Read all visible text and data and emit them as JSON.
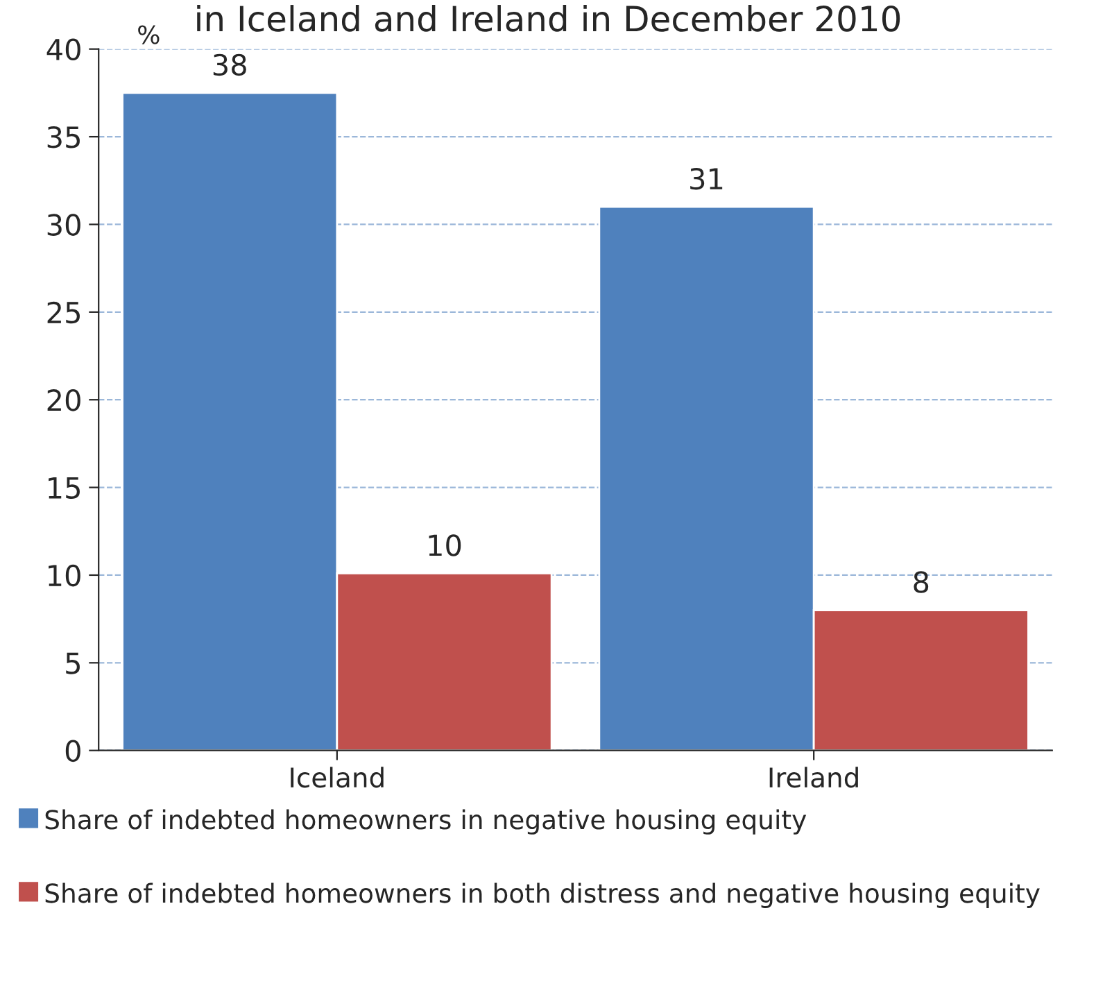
{
  "chart_data": {
    "type": "bar",
    "title": "in Iceland and Ireland in December 2010",
    "ylabel": "%",
    "categories": [
      "Iceland",
      "Ireland"
    ],
    "series": [
      {
        "name": "Share of indebted homeowners in negative housing equity",
        "color": "#4f81bd",
        "values": [
          37.5,
          31.0
        ],
        "value_labels": [
          "38",
          "31"
        ]
      },
      {
        "name": "Share of indebted homeowners in both distress and negative housing equity",
        "color": "#c0504d",
        "values": [
          10.1,
          8.0
        ],
        "value_labels": [
          "10",
          "8"
        ]
      }
    ],
    "ylim": [
      0,
      40
    ],
    "yticks": [
      0,
      5,
      10,
      15,
      20,
      25,
      30,
      35,
      40
    ],
    "grid": "y",
    "legend": "bottom"
  }
}
